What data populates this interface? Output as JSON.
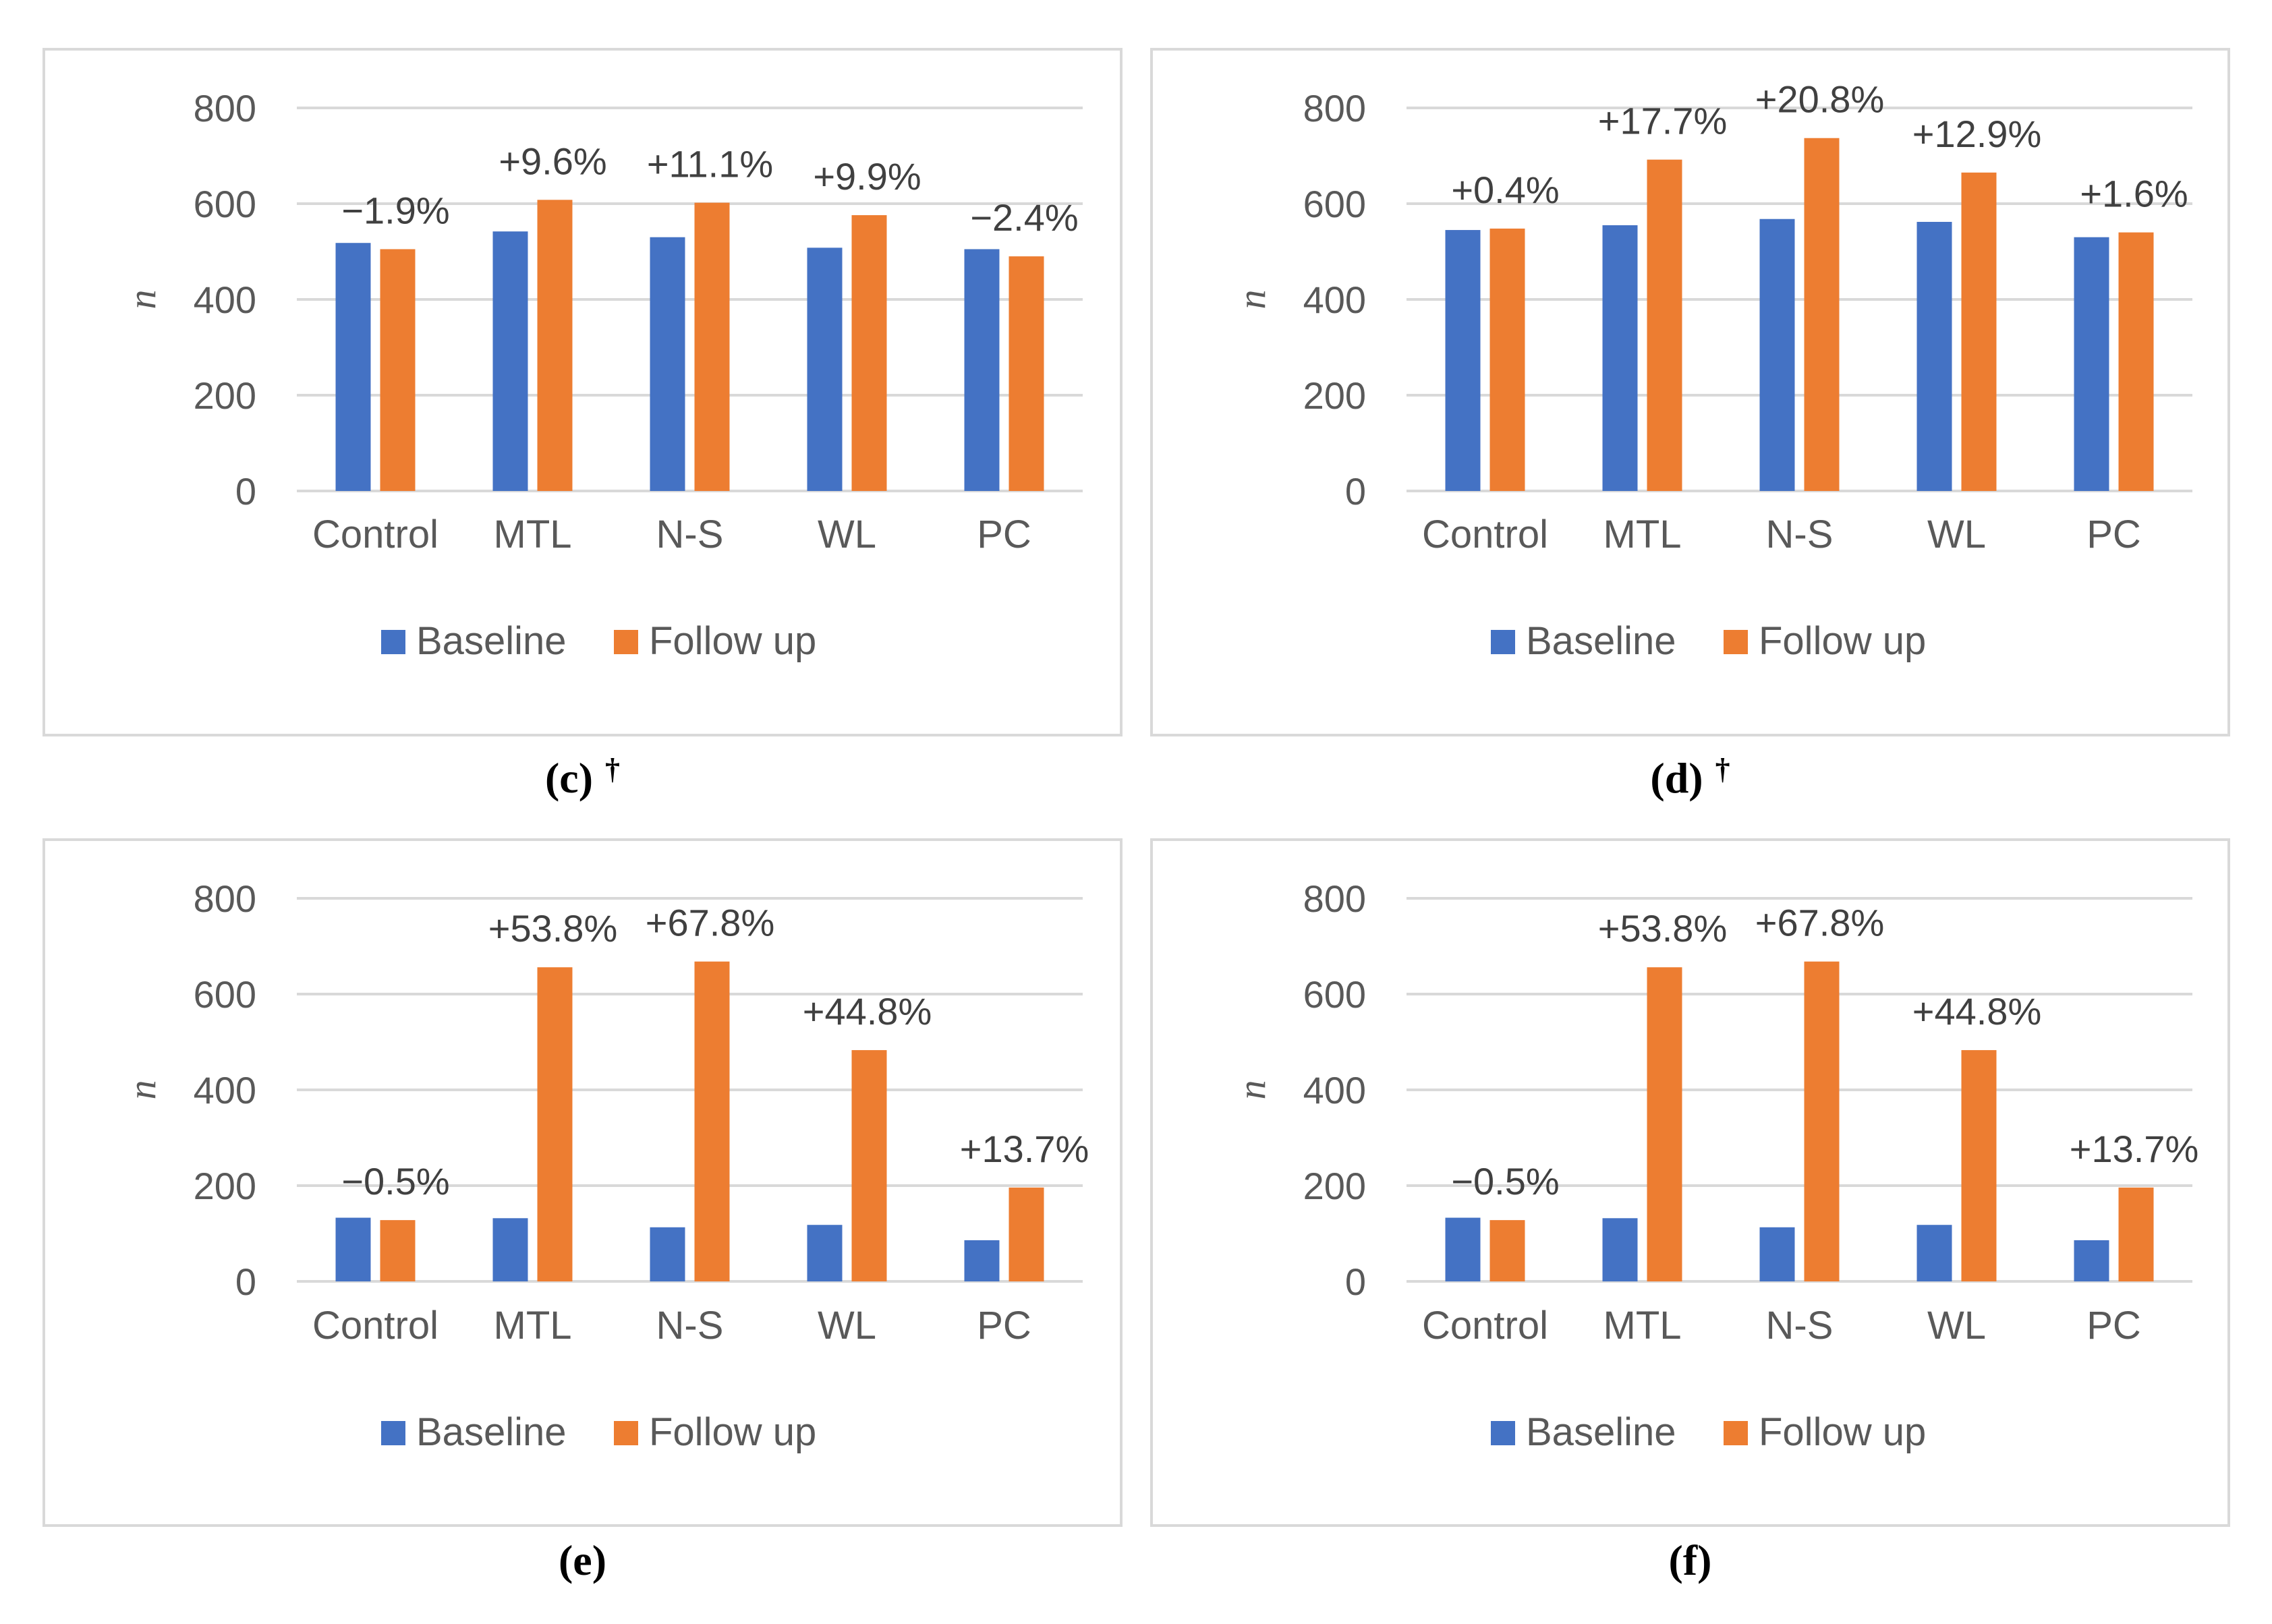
{
  "colors": {
    "baseline": "#4472C4",
    "followup": "#ED7D31",
    "grid": "#D9D9D9",
    "frame": "#D9D9D9"
  },
  "chart_data": [
    {
      "type": "bar",
      "panel": "(c)",
      "caption_mark": "†",
      "categories": [
        "Control",
        "MTL",
        "N-S",
        "WL",
        "PC"
      ],
      "series": [
        {
          "name": "Baseline",
          "values": [
            518,
            542,
            530,
            508,
            505
          ]
        },
        {
          "name": "Follow up",
          "values": [
            505,
            608,
            602,
            576,
            490
          ]
        }
      ],
      "annotations": [
        "−1.9%",
        "+9.6%",
        "+11.1%",
        "+9.9%",
        "−2.4%"
      ],
      "ylabel": "n",
      "yticks": [
        "0",
        "200",
        "400",
        "600",
        "800"
      ],
      "ylim": [
        0,
        800
      ],
      "grid": true,
      "legend": "bottom"
    },
    {
      "type": "bar",
      "panel": "(d)",
      "caption_mark": "†",
      "categories": [
        "Control",
        "MTL",
        "N-S",
        "WL",
        "PC"
      ],
      "series": [
        {
          "name": "Baseline",
          "values": [
            545,
            555,
            568,
            562,
            530
          ]
        },
        {
          "name": "Follow up",
          "values": [
            548,
            692,
            737,
            665,
            540
          ]
        }
      ],
      "annotations": [
        "+0.4%",
        "+17.7%",
        "+20.8%",
        "+12.9%",
        "+1.6%"
      ],
      "ylabel": "n",
      "yticks": [
        "0",
        "200",
        "400",
        "600",
        "800"
      ],
      "ylim": [
        0,
        800
      ],
      "grid": true,
      "legend": "bottom"
    },
    {
      "type": "bar",
      "panel": "(e)",
      "caption_mark": "",
      "categories": [
        "Control",
        "MTL",
        "N-S",
        "WL",
        "PC"
      ],
      "series": [
        {
          "name": "Baseline",
          "values": [
            133,
            132,
            113,
            118,
            86
          ]
        },
        {
          "name": "Follow up",
          "values": [
            128,
            656,
            668,
            483,
            196
          ]
        }
      ],
      "annotations": [
        "−0.5%",
        "+53.8%",
        "+67.8%",
        "+44.8%",
        "+13.7%"
      ],
      "ylabel": "n",
      "yticks": [
        "0",
        "200",
        "400",
        "600",
        "800"
      ],
      "ylim": [
        0,
        800
      ],
      "grid": true,
      "legend": "bottom"
    },
    {
      "type": "bar",
      "panel": "(f)",
      "caption_mark": "",
      "categories": [
        "Control",
        "MTL",
        "N-S",
        "WL",
        "PC"
      ],
      "series": [
        {
          "name": "Baseline",
          "values": [
            133,
            132,
            113,
            118,
            86
          ]
        },
        {
          "name": "Follow up",
          "values": [
            128,
            656,
            668,
            483,
            196
          ]
        }
      ],
      "annotations": [
        "−0.5%",
        "+53.8%",
        "+67.8%",
        "+44.8%",
        "+13.7%"
      ],
      "ylabel": "n",
      "yticks": [
        "0",
        "200",
        "400",
        "600",
        "800"
      ],
      "ylim": [
        0,
        800
      ],
      "grid": true,
      "legend": "bottom"
    }
  ]
}
